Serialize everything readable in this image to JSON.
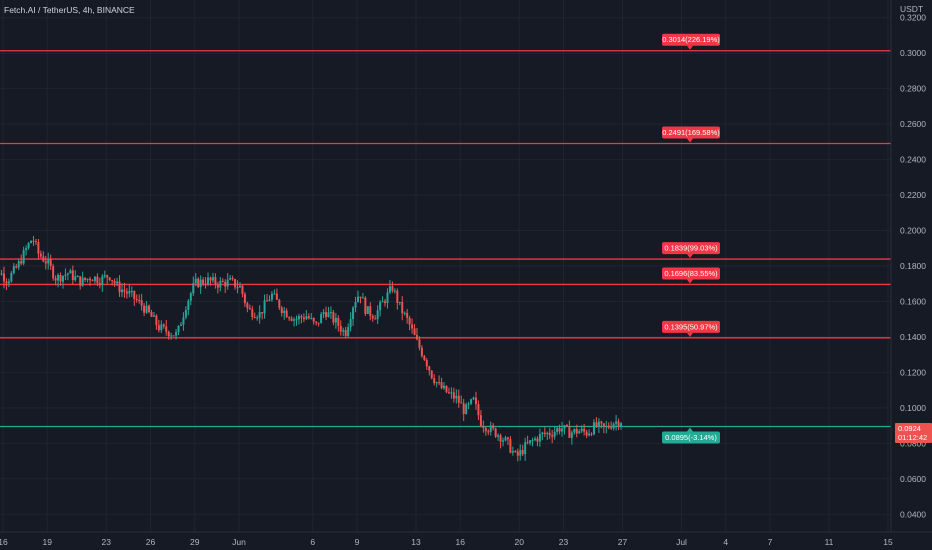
{
  "header": {
    "title": "Fetch.AI / TetherUS, 4h, BINANCE",
    "currency": "USDT"
  },
  "colors": {
    "background": "#161a25",
    "grid": "#1f2430",
    "resistance": "#f23645",
    "support": "#22ab94",
    "up": "#26a69a",
    "down": "#ef5350",
    "axis_text": "#b2b5be",
    "current_price_bg": "#ef5350"
  },
  "current_price": {
    "value": "0.0924",
    "countdown": "01:12:42"
  },
  "chart_data": {
    "type": "candlestick",
    "title": "Fetch.AI / TetherUS, 4h, BINANCE",
    "xlabel": "",
    "ylabel": "USDT",
    "ylim": [
      0.03,
      0.33
    ],
    "y_ticks": [
      "0.3200",
      "0.3000",
      "0.2800",
      "0.2600",
      "0.2400",
      "0.2200",
      "0.2000",
      "0.1800",
      "0.1600",
      "0.1400",
      "0.1200",
      "0.1000",
      "0.0800",
      "0.0600",
      "0.0400"
    ],
    "x_ticks": [
      {
        "label": "16",
        "day": 16
      },
      {
        "label": "19",
        "day": 19
      },
      {
        "label": "23",
        "day": 23
      },
      {
        "label": "26",
        "day": 26
      },
      {
        "label": "29",
        "day": 29
      },
      {
        "label": "Jun",
        "day": 32
      },
      {
        "label": "6",
        "day": 37
      },
      {
        "label": "9",
        "day": 40
      },
      {
        "label": "13",
        "day": 44
      },
      {
        "label": "16",
        "day": 47
      },
      {
        "label": "20",
        "day": 51
      },
      {
        "label": "23",
        "day": 54
      },
      {
        "label": "27",
        "day": 58
      },
      {
        "label": "Jul",
        "day": 62
      },
      {
        "label": "4",
        "day": 65
      },
      {
        "label": "7",
        "day": 68
      },
      {
        "label": "11",
        "day": 72
      },
      {
        "label": "15",
        "day": 76
      }
    ],
    "levels": [
      {
        "value": 0.3014,
        "label": "0.3014(226.19%)",
        "kind": "resistance"
      },
      {
        "value": 0.2491,
        "label": "0.2491(169.58%)",
        "kind": "resistance"
      },
      {
        "value": 0.1839,
        "label": "0.1839(99.03%)",
        "kind": "resistance"
      },
      {
        "value": 0.1696,
        "label": "0.1696(83.55%)",
        "kind": "resistance"
      },
      {
        "value": 0.1395,
        "label": "0.1395(50.97%)",
        "kind": "resistance"
      },
      {
        "value": 0.0895,
        "label": "0.0895(-3.14%)",
        "kind": "support"
      }
    ],
    "price_path": [
      [
        14.9,
        0.175
      ],
      [
        15.6,
        0.178
      ],
      [
        16.3,
        0.172
      ],
      [
        17.0,
        0.18
      ],
      [
        17.6,
        0.19
      ],
      [
        18.0,
        0.196
      ],
      [
        18.4,
        0.187
      ],
      [
        19.0,
        0.182
      ],
      [
        19.6,
        0.173
      ],
      [
        20.4,
        0.176
      ],
      [
        21.3,
        0.171
      ],
      [
        22.0,
        0.174
      ],
      [
        22.6,
        0.172
      ],
      [
        23.2,
        0.175
      ],
      [
        23.8,
        0.168
      ],
      [
        24.6,
        0.164
      ],
      [
        25.4,
        0.158
      ],
      [
        26.0,
        0.152
      ],
      [
        26.6,
        0.145
      ],
      [
        27.2,
        0.143
      ],
      [
        27.8,
        0.141
      ],
      [
        28.4,
        0.158
      ],
      [
        29.0,
        0.17
      ],
      [
        29.8,
        0.172
      ],
      [
        30.6,
        0.17
      ],
      [
        31.4,
        0.171
      ],
      [
        32.1,
        0.168
      ],
      [
        32.6,
        0.155
      ],
      [
        33.4,
        0.153
      ],
      [
        34.2,
        0.164
      ],
      [
        35.0,
        0.155
      ],
      [
        35.8,
        0.15
      ],
      [
        36.6,
        0.152
      ],
      [
        37.2,
        0.146
      ],
      [
        37.8,
        0.155
      ],
      [
        38.6,
        0.148
      ],
      [
        39.2,
        0.142
      ],
      [
        39.8,
        0.16
      ],
      [
        40.2,
        0.165
      ],
      [
        40.6,
        0.155
      ],
      [
        41.2,
        0.152
      ],
      [
        41.8,
        0.16
      ],
      [
        42.4,
        0.168
      ],
      [
        42.9,
        0.157
      ],
      [
        43.5,
        0.148
      ],
      [
        44.0,
        0.138
      ],
      [
        44.6,
        0.128
      ],
      [
        45.1,
        0.118
      ],
      [
        45.6,
        0.112
      ],
      [
        46.2,
        0.108
      ],
      [
        46.8,
        0.105
      ],
      [
        47.3,
        0.098
      ],
      [
        47.9,
        0.104
      ],
      [
        48.4,
        0.092
      ],
      [
        49.0,
        0.088
      ],
      [
        49.6,
        0.085
      ],
      [
        50.2,
        0.08
      ],
      [
        50.8,
        0.072
      ],
      [
        51.4,
        0.078
      ],
      [
        52.0,
        0.082
      ],
      [
        52.6,
        0.085
      ],
      [
        53.2,
        0.086
      ],
      [
        53.8,
        0.089
      ],
      [
        54.4,
        0.086
      ],
      [
        55.0,
        0.087
      ],
      [
        55.6,
        0.086
      ],
      [
        56.2,
        0.09
      ],
      [
        56.8,
        0.088
      ],
      [
        57.4,
        0.092
      ],
      [
        58.0,
        0.093
      ]
    ]
  }
}
